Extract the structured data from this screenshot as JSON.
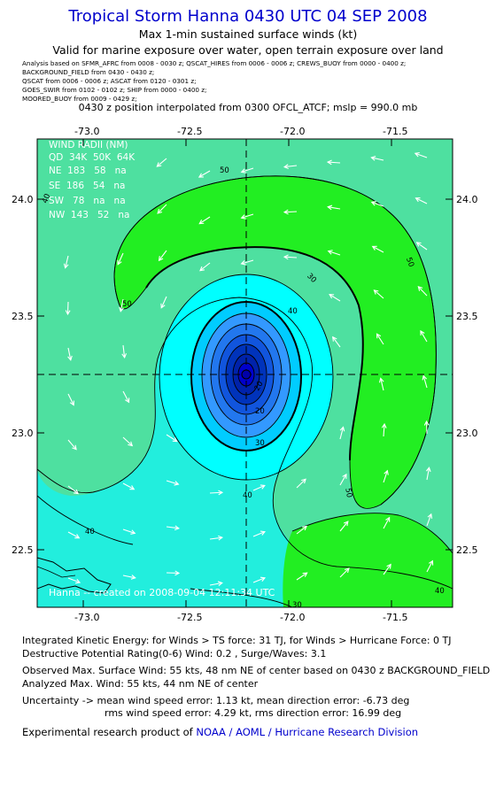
{
  "header": {
    "title": "Tropical Storm Hanna 0430 UTC 04 SEP 2008",
    "subtitle": "Max 1-min sustained surface winds (kt)",
    "validity": "Valid for marine exposure over water, open terrain exposure over land"
  },
  "analysis_sources": [
    "Analysis based on  SFMR_AFRC from 0008 - 0030 z;  QSCAT_HIRES from 0006 - 0006 z;  CREWS_BUOY from 0000 - 0400 z;",
    "BACKGROUND_FIELD from 0430 - 0430 z;",
    "QSCAT from 0006 - 0006 z;  ASCAT from 0120 - 0301 z;",
    "GOES_SWIR from 0102 - 0102 z;  SHIP from 0000 - 0400 z;",
    "MOORED_BUOY from 0009 - 0429 z;"
  ],
  "position_line": "0430 z position interpolated from 0300 OFCL_ATCF; mslp = 990.0 mb",
  "map": {
    "lon_ticks": [
      "-73.0",
      "-72.5",
      "-72.0",
      "-71.5"
    ],
    "lat_ticks": [
      "24.0",
      "23.5",
      "23.0",
      "22.5"
    ],
    "lon_range": [
      -73.2,
      -71.4
    ],
    "lat_range": [
      22.25,
      24.25
    ],
    "center": {
      "lon": -72.2,
      "lat": 23.25
    },
    "contour_labels": [
      "50",
      "50",
      "50",
      "50",
      "40",
      "40",
      "40",
      "40",
      "40",
      "30",
      "30",
      "30",
      "20",
      "20"
    ],
    "wind_radii": {
      "rows": [
        "WIND RADII (NM)",
        "QD  34K  50K  64K",
        "NE  183   58   na",
        "SE  186   54   na",
        "SW   78   na   na",
        "NW  143   52   na"
      ]
    },
    "credit": "Hanna -- created on 2008-09-04 12:11:34 UTC",
    "colors": {
      "lt40": "#22eedd",
      "c40_50": "#4ee0a0",
      "ge50": "#22ee22",
      "core": [
        "#00ffff",
        "#00ccff",
        "#3399ff",
        "#2277ee",
        "#1155dd",
        "#0033bb",
        "#0022aa",
        "#0000cc"
      ]
    }
  },
  "stats": {
    "ike": "Integrated Kinetic Energy:  for Winds > TS force: 31 TJ,  for Winds > Hurricane Force: 0 TJ",
    "dpr": "Destructive Potential Rating(0-6)   Wind: 0.2 , Surge/Waves: 3.1",
    "observed": "Observed Max. Surface Wind: 55 kts, 48 nm NE of center based on 0430 z BACKGROUND_FIELD",
    "analyzed": "Analyzed Max. Wind: 55 kts, 44 nm NE of center",
    "uncertainty1": "Uncertainty -> mean wind speed error: 1.13 kt,   mean direction error:  -6.73 deg",
    "uncertainty2": "rms wind speed error: 4.29 kt,   rms direction error: 16.99 deg",
    "credit_prefix": "Experimental research product of ",
    "credit_link": "NOAA / AOML / Hurricane Research Division"
  }
}
